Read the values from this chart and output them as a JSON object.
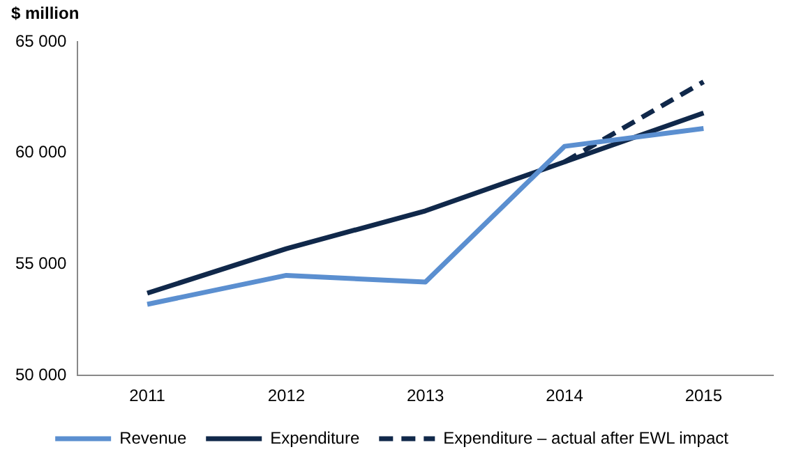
{
  "chart_data": {
    "type": "line",
    "ylabel": "$ million",
    "categories": [
      "2011",
      "2012",
      "2013",
      "2014",
      "2015"
    ],
    "series": [
      {
        "name": "Revenue",
        "color": "#5b8fd0",
        "values": [
          53200,
          54500,
          54200,
          60300,
          61100
        ]
      },
      {
        "name": "Expenditure",
        "color": "#10284a",
        "values": [
          53700,
          55700,
          57400,
          59600,
          61800
        ]
      },
      {
        "name": "Expenditure – actual after EWL impact",
        "color": "#10284a",
        "line_style": "dashed",
        "values": [
          null,
          null,
          null,
          59600,
          63200
        ]
      }
    ],
    "ylim": [
      50000,
      65000
    ],
    "yticks": [
      {
        "value": 50000,
        "label": "50 000"
      },
      {
        "value": 55000,
        "label": "55 000"
      },
      {
        "value": 60000,
        "label": "60 000"
      },
      {
        "value": 65000,
        "label": "65 000"
      }
    ],
    "grid": false,
    "legend": "bottom",
    "marker": "none"
  }
}
